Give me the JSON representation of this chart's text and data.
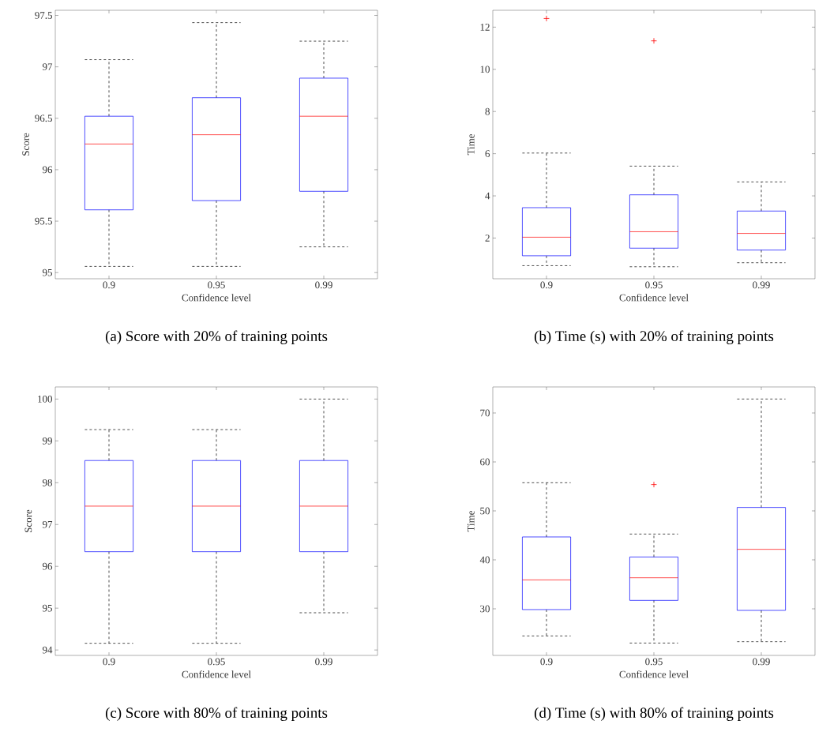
{
  "chart_data": [
    {
      "type": "box",
      "categories": [
        "0.9",
        "0.95",
        "0.99"
      ],
      "xlabel": "Confidence level",
      "ylabel": "Score",
      "ylim": [
        94.94,
        97.55
      ],
      "yticks": [
        95,
        95.5,
        96,
        96.5,
        97,
        97.5
      ],
      "color": "#0000ff",
      "annotations": [
        "(a) Score with 20% of training points"
      ],
      "boxes": [
        {
          "low": 95.06,
          "q1": 95.61,
          "median": 96.25,
          "q3": 96.52,
          "high": 97.07
        },
        {
          "low": 95.06,
          "q1": 95.7,
          "median": 96.34,
          "q3": 96.7,
          "high": 97.43
        },
        {
          "low": 95.25,
          "q1": 95.79,
          "median": 96.52,
          "q3": 96.89,
          "high": 97.25
        }
      ]
    },
    {
      "type": "box",
      "categories": [
        "0.9",
        "0.95",
        "0.99"
      ],
      "xlabel": "Confidence level",
      "ylabel": "Time",
      "ylim": [
        0.07,
        12.8
      ],
      "yticks": [
        2,
        4,
        6,
        8,
        10,
        12
      ],
      "color": "#0000ff",
      "annotations": [
        "(b) Time (s) with 20% of training points"
      ],
      "boxes": [
        {
          "low": 0.69,
          "q1": 1.16,
          "median": 2.04,
          "q3": 3.44,
          "high": 6.03,
          "outliers": [
            12.41
          ]
        },
        {
          "low": 0.64,
          "q1": 1.52,
          "median": 2.3,
          "q3": 4.05,
          "high": 5.41,
          "outliers": [
            11.35
          ]
        },
        {
          "low": 0.83,
          "q1": 1.43,
          "median": 2.22,
          "q3": 3.28,
          "high": 4.66
        }
      ]
    },
    {
      "type": "box",
      "categories": [
        "0.9",
        "0.95",
        "0.99"
      ],
      "xlabel": "Confidence level",
      "ylabel": "Score",
      "ylim": [
        93.87,
        100.29
      ],
      "yticks": [
        94,
        95,
        96,
        97,
        98,
        99,
        100
      ],
      "color": "#0000ff",
      "annotations": [
        "(c) Score with 80% of training points"
      ],
      "boxes": [
        {
          "low": 94.16,
          "q1": 96.35,
          "median": 97.44,
          "q3": 98.53,
          "high": 99.27
        },
        {
          "low": 94.16,
          "q1": 96.35,
          "median": 97.44,
          "q3": 98.53,
          "high": 99.27
        },
        {
          "low": 94.89,
          "q1": 96.35,
          "median": 97.44,
          "q3": 98.53,
          "high": 100
        }
      ]
    },
    {
      "type": "box",
      "categories": [
        "0.9",
        "0.95",
        "0.99"
      ],
      "xlabel": "Confidence level",
      "ylabel": "Time",
      "ylim": [
        20.48,
        75.32
      ],
      "yticks": [
        30,
        40,
        50,
        60,
        70
      ],
      "color": "#0000ff",
      "annotations": [
        "(d) Time (s) with 80% of training points"
      ],
      "boxes": [
        {
          "low": 24.46,
          "q1": 29.84,
          "median": 35.91,
          "q3": 44.68,
          "high": 55.75
        },
        {
          "low": 23.01,
          "q1": 31.72,
          "median": 36.34,
          "q3": 40.59,
          "high": 45.27,
          "outliers": [
            55.38
          ]
        },
        {
          "low": 23.28,
          "q1": 29.68,
          "median": 42.15,
          "q3": 50.7,
          "high": 72.85
        }
      ]
    }
  ]
}
